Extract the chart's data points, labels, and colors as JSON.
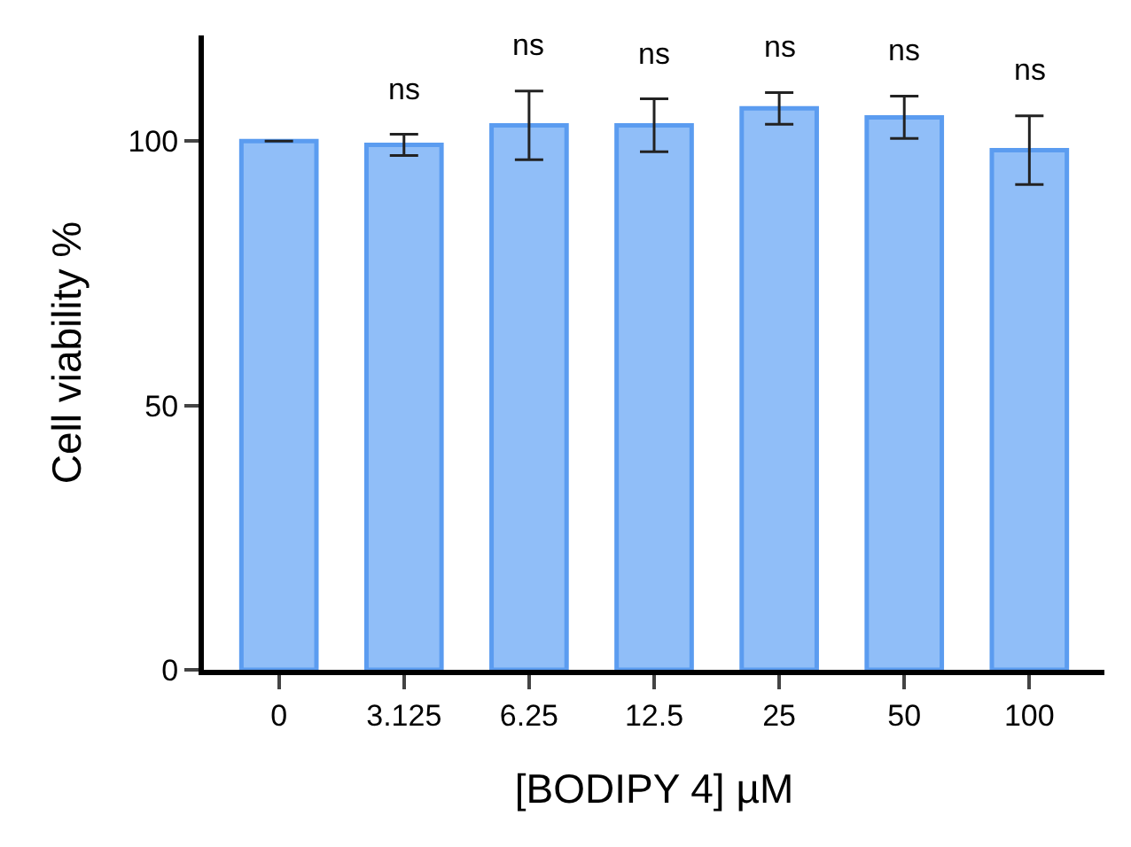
{
  "chart_data": {
    "type": "bar",
    "xlabel": "[BODIPY 4] µM",
    "ylabel": "Cell viability %",
    "categories": [
      "0",
      "3.125",
      "6.25",
      "12.5",
      "25",
      "50",
      "100"
    ],
    "values": [
      100,
      99.3,
      103,
      103,
      106.2,
      104.5,
      98.3
    ],
    "errors": [
      null,
      2,
      6.5,
      5,
      3,
      4,
      6.5
    ],
    "color": "#90bef8",
    "ylim": [
      0,
      120
    ],
    "yticks": [
      0,
      50,
      100
    ],
    "grid": false,
    "annotations": [
      "ns",
      "ns",
      "ns",
      "ns",
      "ns",
      "ns"
    ]
  }
}
